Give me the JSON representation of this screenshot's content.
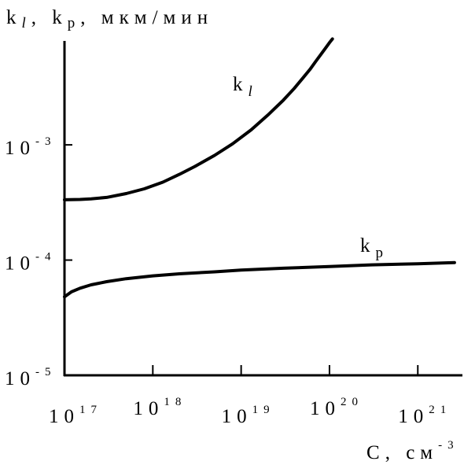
{
  "chart_data": {
    "type": "line",
    "ylabel": "k",
    "ylabel_sub1": "l",
    "ylabel_mid": ", k",
    "ylabel_sub2": "p",
    "ylabel_units": ", мкм/мин",
    "xlabel": "C",
    "xlabel_units": ", см",
    "xlabel_exp": "-3",
    "x_scale": "log",
    "y_scale": "log",
    "xlim": [
      1e+17,
      3.2e+21
    ],
    "ylim": [
      1e-05,
      0.0085
    ],
    "x_ticks": [
      {
        "value": 1e+17,
        "base": "10",
        "exp": "17"
      },
      {
        "value": 1e+18,
        "base": "10",
        "exp": "18"
      },
      {
        "value": 1e+19,
        "base": "10",
        "exp": "19"
      },
      {
        "value": 1e+20,
        "base": "10",
        "exp": "20"
      },
      {
        "value": 1e+21,
        "base": "10",
        "exp": "21"
      }
    ],
    "y_ticks": [
      {
        "value": 1e-05,
        "base": "10",
        "exp": "-5"
      },
      {
        "value": 0.0001,
        "base": "10",
        "exp": "-4"
      },
      {
        "value": 0.001,
        "base": "10",
        "exp": "-3"
      }
    ],
    "series": [
      {
        "name": "k",
        "name_sub": "l",
        "x": [
          1e+17,
          1.5e+17,
          2e+17,
          3e+17,
          5e+17,
          8e+17,
          1.3e+18,
          2e+18,
          3e+18,
          5e+18,
          8e+18,
          1.3e+19,
          2e+19,
          3e+19,
          4e+19,
          5e+19,
          6e+19,
          7e+19,
          8e+19,
          9e+19,
          1e+20,
          1.08e+20
        ],
        "y": [
          0.000334,
          0.000336,
          0.00034,
          0.00035,
          0.000378,
          0.000415,
          0.000475,
          0.000555,
          0.00065,
          0.00081,
          0.00102,
          0.00135,
          0.00181,
          0.00244,
          0.0031,
          0.0038,
          0.0045,
          0.0053,
          0.0061,
          0.0069,
          0.0077,
          0.0083
        ]
      },
      {
        "name": "k",
        "name_sub": "p",
        "x": [
          1e+17,
          1.2e+17,
          1.5e+17,
          2e+17,
          3e+17,
          5e+17,
          1e+18,
          2e+18,
          5e+18,
          1e+19,
          3e+19,
          1e+20,
          3e+20,
          1e+21,
          2.6e+21
        ],
        "y": [
          4.8e-05,
          5.3e-05,
          5.7e-05,
          6.1e-05,
          6.5e-05,
          6.9e-05,
          7.3e-05,
          7.6e-05,
          7.9e-05,
          8.2e-05,
          8.5e-05,
          8.8e-05,
          9.1e-05,
          9.3e-05,
          9.5e-05
        ]
      }
    ]
  }
}
